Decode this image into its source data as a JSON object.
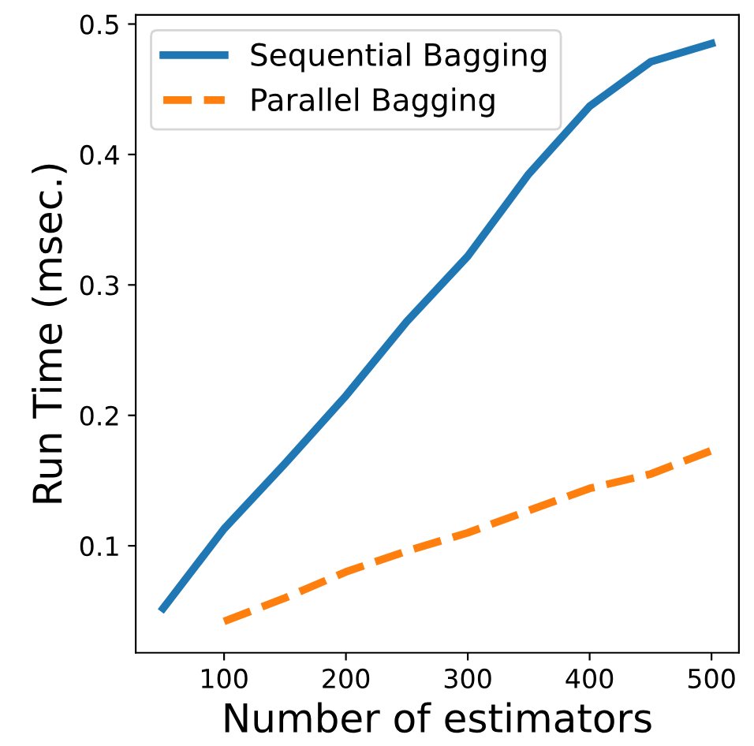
{
  "chart_data": {
    "type": "line",
    "xlabel": "Number of estimators",
    "ylabel": "Run Time (msec.)",
    "xlim": [
      27.5,
      522.5
    ],
    "xticks": [
      100,
      200,
      300,
      400,
      500
    ],
    "ylim": [
      0.018,
      0.507
    ],
    "yticks": [
      0.1,
      0.2,
      0.3,
      0.4,
      0.5
    ],
    "legend": "top left",
    "grid": false,
    "series": [
      {
        "name": "Sequential Bagging",
        "color": "#1f77b4",
        "line_style": "solid",
        "x": [
          50,
          100,
          150,
          200,
          250,
          300,
          350,
          400,
          450,
          500
        ],
        "values": [
          0.052,
          0.113,
          0.163,
          0.215,
          0.272,
          0.322,
          0.385,
          0.437,
          0.471,
          0.485
        ]
      },
      {
        "name": "Parallel Bagging",
        "color": "#ff7f0e",
        "line_style": "dashed",
        "x": [
          100,
          150,
          200,
          250,
          300,
          350,
          400,
          450,
          500
        ],
        "values": [
          0.042,
          0.06,
          0.08,
          0.096,
          0.11,
          0.127,
          0.144,
          0.155,
          0.173
        ]
      }
    ]
  }
}
